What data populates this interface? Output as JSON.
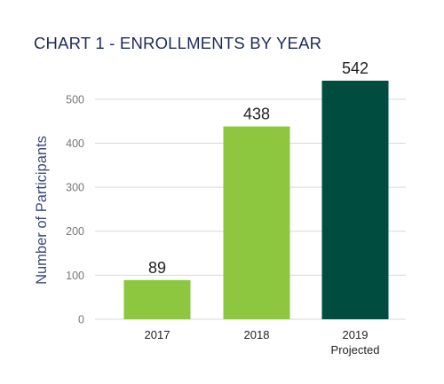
{
  "chart_data": {
    "type": "bar",
    "title": "CHART 1 - ENROLLMENTS BY YEAR",
    "ylabel": "Number of Participants",
    "xlabel": "",
    "categories": [
      {
        "label": "2017",
        "sublabel": ""
      },
      {
        "label": "2018",
        "sublabel": ""
      },
      {
        "label": "2019",
        "sublabel": "Projected"
      }
    ],
    "values": [
      89,
      438,
      542
    ],
    "data_labels": [
      "89",
      "438",
      "542"
    ],
    "bar_colors": [
      "#8dc63f",
      "#8dc63f",
      "#004d40"
    ],
    "ylim": [
      0,
      550
    ],
    "yticks": [
      0,
      100,
      200,
      300,
      400,
      500
    ],
    "grid": true,
    "gridline_color": "#d9d9d9",
    "title_color": "#1f2a5c"
  }
}
